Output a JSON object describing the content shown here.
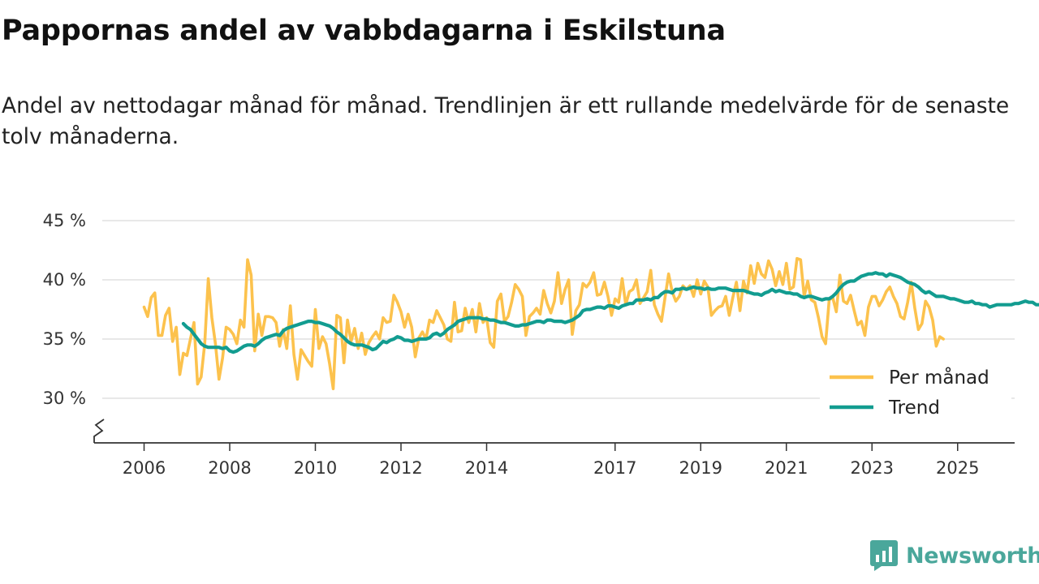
{
  "title": "Pappornas andel av vabbdagarna i Eskilstuna",
  "subtitle": "Andel av nettodagar månad för månad. Trendlinjen är ett rullande medelvärde för de senaste tolv månaderna.",
  "logo_text": "Newsworthy",
  "colors": {
    "monthly": "#fcc24d",
    "trend": "#129c90",
    "grid": "#d9d9d9",
    "axis": "#333333",
    "logo": "#4aa79b"
  },
  "chart_data": {
    "type": "line",
    "title": "Pappornas andel av vabbdagarna i Eskilstuna",
    "xlabel": "",
    "ylabel": "",
    "ylim": [
      26,
      45
    ],
    "xlim": [
      2005.5,
      2025.65
    ],
    "y_ticks": [
      {
        "value": 30,
        "label": "30 %"
      },
      {
        "value": 35,
        "label": "35 %"
      },
      {
        "value": 40,
        "label": "40 %"
      },
      {
        "value": 45,
        "label": "45 %"
      }
    ],
    "x_ticks": [
      {
        "value": 2006,
        "label": "2006"
      },
      {
        "value": 2008,
        "label": "2008"
      },
      {
        "value": 2010,
        "label": "2010"
      },
      {
        "value": 2012,
        "label": "2012"
      },
      {
        "value": 2014,
        "label": "2014"
      },
      {
        "value": 2017,
        "label": "2017"
      },
      {
        "value": 2019,
        "label": "2019"
      },
      {
        "value": 2021,
        "label": "2021"
      },
      {
        "value": 2023,
        "label": "2023"
      },
      {
        "value": 2025,
        "label": "2025"
      }
    ],
    "legend": {
      "position": "bottom-right",
      "entries": [
        "Per månad",
        "Trend"
      ]
    },
    "series": [
      {
        "name": "Per månad",
        "color": "#fcc24d",
        "x_start": 2006.0,
        "step_months": 1,
        "values": [
          37.7,
          36.9,
          38.5,
          38.9,
          35.3,
          35.3,
          37.0,
          37.6,
          34.8,
          36.0,
          32.0,
          33.8,
          33.6,
          35.0,
          36.4,
          31.2,
          31.8,
          34.6,
          40.1,
          36.8,
          34.6,
          31.6,
          33.4,
          36.0,
          35.8,
          35.4,
          34.6,
          36.6,
          36.0,
          41.7,
          40.4,
          34.0,
          37.1,
          35.3,
          36.9,
          36.9,
          36.8,
          36.4,
          34.4,
          35.8,
          34.2,
          37.8,
          33.7,
          31.6,
          34.1,
          33.6,
          33.1,
          32.7,
          37.5,
          34.2,
          35.2,
          34.6,
          32.9,
          30.8,
          37.0,
          36.8,
          33.0,
          36.6,
          34.8,
          35.9,
          34.2,
          35.5,
          33.7,
          34.7,
          35.2,
          35.6,
          35.0,
          36.8,
          36.4,
          36.5,
          38.7,
          38.1,
          37.3,
          36.0,
          37.1,
          36.0,
          33.5,
          35.1,
          35.6,
          35.0,
          36.6,
          36.4,
          37.4,
          36.8,
          36.2,
          35.0,
          34.8,
          38.1,
          35.6,
          35.7,
          37.6,
          36.4,
          37.5,
          35.6,
          38.0,
          36.4,
          36.8,
          34.7,
          34.3,
          38.2,
          38.8,
          36.5,
          36.9,
          38.1,
          39.6,
          39.2,
          38.6,
          35.3,
          36.9,
          37.2,
          37.6,
          37.1,
          39.1,
          38.0,
          37.2,
          38.2,
          40.6,
          38.0,
          39.2,
          40.0,
          35.4,
          37.4,
          37.9,
          39.7,
          39.4,
          39.8,
          40.6,
          38.7,
          38.8,
          39.8,
          38.6,
          37.0,
          38.4,
          38.1,
          40.1,
          37.9,
          39.0,
          39.2,
          40.0,
          38.0,
          38.5,
          39.0,
          40.8,
          37.9,
          37.1,
          36.5,
          38.5,
          40.5,
          39.0,
          38.2,
          38.6,
          39.5,
          39.2,
          39.5,
          38.6,
          40.0,
          38.8,
          39.9,
          39.4,
          37.0,
          37.4,
          37.7,
          37.8,
          38.6,
          37.0,
          38.5,
          39.8,
          37.4,
          39.9,
          38.9,
          41.2,
          39.7,
          41.4,
          40.5,
          40.2,
          41.6,
          40.9,
          39.5,
          40.7,
          39.6,
          41.4,
          39.2,
          39.4,
          41.8,
          41.7,
          38.6,
          39.9,
          38.3,
          38.1,
          36.8,
          35.2,
          34.6,
          38.3,
          38.5,
          37.3,
          40.4,
          38.2,
          38.0,
          38.7,
          37.4,
          36.2,
          36.5,
          35.3,
          37.7,
          38.6,
          38.6,
          37.8,
          38.3,
          39.0,
          39.4,
          38.6,
          38.0,
          36.9,
          36.7,
          38.1,
          39.8,
          37.6,
          35.8,
          36.3,
          38.2,
          37.7,
          36.6,
          34.4,
          35.2,
          35.0
        ]
      },
      {
        "name": "Trend",
        "color": "#129c90",
        "x_start": 2006.917,
        "step_months": 1,
        "values": [
          36.3,
          36.0,
          35.8,
          35.4,
          35.0,
          34.6,
          34.4,
          34.3,
          34.3,
          34.3,
          34.3,
          34.2,
          34.3,
          34.0,
          33.9,
          34.0,
          34.2,
          34.4,
          34.5,
          34.5,
          34.4,
          34.6,
          34.9,
          35.1,
          35.2,
          35.3,
          35.4,
          35.3,
          35.7,
          35.9,
          36.0,
          36.1,
          36.2,
          36.3,
          36.4,
          36.5,
          36.5,
          36.4,
          36.4,
          36.3,
          36.2,
          36.1,
          35.9,
          35.6,
          35.4,
          35.1,
          34.8,
          34.6,
          34.5,
          34.5,
          34.5,
          34.4,
          34.3,
          34.1,
          34.2,
          34.5,
          34.8,
          34.7,
          34.9,
          35.0,
          35.2,
          35.1,
          34.9,
          34.9,
          34.8,
          34.9,
          35.0,
          35.0,
          35.0,
          35.1,
          35.4,
          35.5,
          35.3,
          35.5,
          35.8,
          36.0,
          36.2,
          36.5,
          36.6,
          36.7,
          36.8,
          36.8,
          36.8,
          36.8,
          36.7,
          36.7,
          36.6,
          36.6,
          36.5,
          36.4,
          36.4,
          36.3,
          36.2,
          36.1,
          36.1,
          36.2,
          36.2,
          36.3,
          36.4,
          36.5,
          36.5,
          36.4,
          36.6,
          36.6,
          36.5,
          36.5,
          36.5,
          36.4,
          36.5,
          36.6,
          36.8,
          37.0,
          37.4,
          37.5,
          37.5,
          37.6,
          37.7,
          37.7,
          37.6,
          37.8,
          37.8,
          37.7,
          37.6,
          37.8,
          37.9,
          38.0,
          38.0,
          38.3,
          38.3,
          38.3,
          38.4,
          38.3,
          38.5,
          38.5,
          38.8,
          39.0,
          39.0,
          38.9,
          39.2,
          39.2,
          39.3,
          39.2,
          39.3,
          39.4,
          39.3,
          39.3,
          39.2,
          39.3,
          39.2,
          39.2,
          39.3,
          39.3,
          39.3,
          39.2,
          39.1,
          39.1,
          39.1,
          39.1,
          39.0,
          38.9,
          38.8,
          38.8,
          38.7,
          38.9,
          39.0,
          39.2,
          39.0,
          39.1,
          39.0,
          38.9,
          38.9,
          38.8,
          38.8,
          38.6,
          38.5,
          38.6,
          38.6,
          38.5,
          38.4,
          38.3,
          38.4,
          38.4,
          38.6,
          38.9,
          39.3,
          39.6,
          39.8,
          39.9,
          39.9,
          40.1,
          40.3,
          40.4,
          40.5,
          40.5,
          40.6,
          40.5,
          40.5,
          40.3,
          40.5,
          40.4,
          40.3,
          40.2,
          40.0,
          39.8,
          39.7,
          39.6,
          39.4,
          39.1,
          38.9,
          39.0,
          38.8,
          38.6,
          38.6,
          38.6,
          38.5,
          38.4,
          38.4,
          38.3,
          38.2,
          38.1,
          38.1,
          38.2,
          38.0,
          38.0,
          37.9,
          37.9,
          37.7,
          37.8,
          37.9,
          37.9,
          37.9,
          37.9,
          37.9,
          38.0,
          38.0,
          38.1,
          38.2,
          38.1,
          38.1,
          37.9,
          37.9,
          37.8,
          37.5,
          37.3,
          37.0,
          36.9
        ]
      }
    ]
  }
}
